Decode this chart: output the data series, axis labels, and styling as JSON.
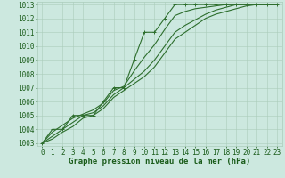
{
  "background_color": "#cce8df",
  "grid_color": "#aaccbb",
  "line_color": "#2d6e2d",
  "marker_color": "#2d6e2d",
  "xlabel": "Graphe pression niveau de la mer (hPa)",
  "xlim": [
    -0.5,
    23.5
  ],
  "ylim": [
    1002.8,
    1013.2
  ],
  "yticks": [
    1003,
    1004,
    1005,
    1006,
    1007,
    1008,
    1009,
    1010,
    1011,
    1012,
    1013
  ],
  "xticks": [
    0,
    1,
    2,
    3,
    4,
    5,
    6,
    7,
    8,
    9,
    10,
    11,
    12,
    13,
    14,
    15,
    16,
    17,
    18,
    19,
    20,
    21,
    22,
    23
  ],
  "series": [
    {
      "x": [
        0,
        1,
        2,
        3,
        4,
        5,
        6,
        7,
        8,
        9,
        10,
        11,
        12,
        13,
        14,
        15,
        16,
        17,
        18,
        19,
        20,
        21,
        22,
        23
      ],
      "y": [
        1003.0,
        1004.0,
        1004.0,
        1005.0,
        1005.0,
        1005.0,
        1006.0,
        1007.0,
        1007.0,
        1009.0,
        1011.0,
        1011.0,
        1012.0,
        1013.0,
        1013.0,
        1013.0,
        1013.0,
        1013.0,
        1013.0,
        1013.0,
        1013.0,
        1013.0,
        1013.0,
        1013.0
      ],
      "marker": true
    },
    {
      "x": [
        0,
        1,
        2,
        3,
        4,
        5,
        6,
        7,
        8,
        9,
        10,
        11,
        12,
        13,
        14,
        15,
        16,
        17,
        18,
        19,
        20,
        21,
        22,
        23
      ],
      "y": [
        1003.0,
        1003.8,
        1004.3,
        1004.8,
        1005.1,
        1005.4,
        1005.9,
        1006.8,
        1007.1,
        1008.2,
        1009.2,
        1010.1,
        1011.2,
        1012.2,
        1012.5,
        1012.7,
        1012.8,
        1012.9,
        1013.0,
        1013.0,
        1013.0,
        1013.0,
        1013.0,
        1013.0
      ],
      "marker": false
    },
    {
      "x": [
        0,
        1,
        2,
        3,
        4,
        5,
        6,
        7,
        8,
        9,
        10,
        11,
        12,
        13,
        14,
        15,
        16,
        17,
        18,
        19,
        20,
        21,
        22,
        23
      ],
      "y": [
        1003.0,
        1003.5,
        1004.0,
        1004.5,
        1005.0,
        1005.2,
        1005.7,
        1006.5,
        1007.0,
        1007.6,
        1008.2,
        1009.0,
        1010.0,
        1011.0,
        1011.5,
        1011.9,
        1012.3,
        1012.6,
        1012.8,
        1013.0,
        1013.0,
        1013.0,
        1013.0,
        1013.0
      ],
      "marker": false
    },
    {
      "x": [
        0,
        1,
        2,
        3,
        4,
        5,
        6,
        7,
        8,
        9,
        10,
        11,
        12,
        13,
        14,
        15,
        16,
        17,
        18,
        19,
        20,
        21,
        22,
        23
      ],
      "y": [
        1003.0,
        1003.3,
        1003.8,
        1004.2,
        1004.8,
        1005.0,
        1005.5,
        1006.3,
        1006.8,
        1007.3,
        1007.8,
        1008.5,
        1009.5,
        1010.5,
        1011.0,
        1011.5,
        1012.0,
        1012.3,
        1012.5,
        1012.7,
        1012.9,
        1013.0,
        1013.0,
        1013.0
      ],
      "marker": false
    }
  ],
  "xlabel_fontsize": 6.5,
  "tick_fontsize": 5.5,
  "xlabel_color": "#1a5c1a",
  "tick_color": "#1a5c1a",
  "linewidth": 0.8,
  "markersize": 2.5
}
